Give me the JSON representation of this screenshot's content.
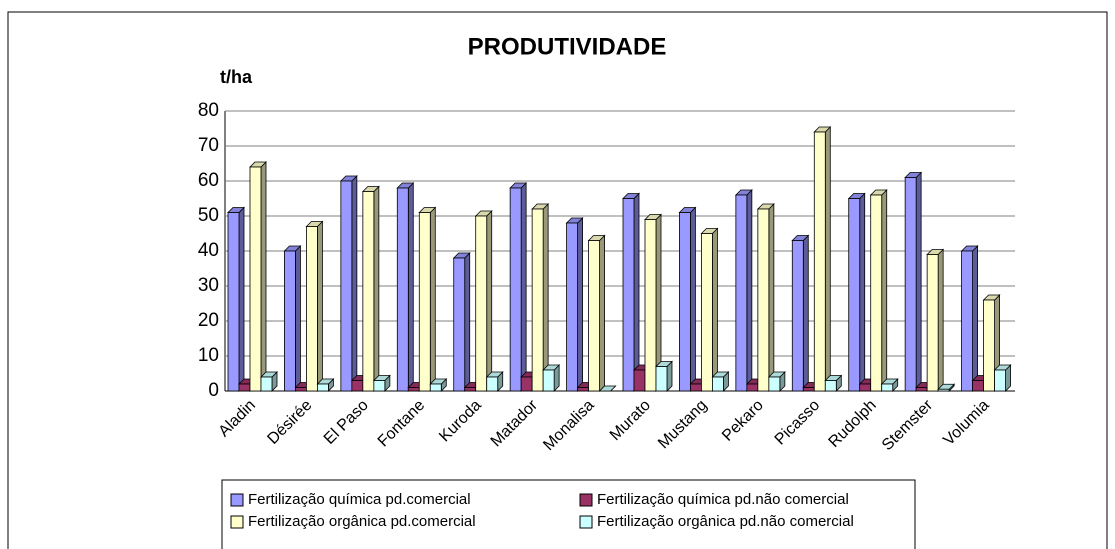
{
  "chart_data": {
    "type": "bar3d",
    "title": "PRODUTIVIDADE",
    "y_label": "t/ha",
    "categories": [
      "Aladin",
      "Désirée",
      "El Paso",
      "Fontane",
      "Kuroda",
      "Matador",
      "Monalisa",
      "Murato",
      "Mustang",
      "Pekaro",
      "Picasso",
      "Rudolph",
      "Stemster",
      "Volumia"
    ],
    "series": [
      {
        "name": "Fertilização química pd.comercial",
        "color": "#9999ff",
        "values": [
          51,
          40,
          60,
          58,
          38,
          58,
          48,
          55,
          51,
          56,
          43,
          55,
          61,
          40
        ]
      },
      {
        "name": "Fertilização química pd.não comercial",
        "color": "#993366",
        "values": [
          2,
          1,
          3,
          1,
          1,
          4,
          1,
          6,
          2,
          2,
          1,
          2,
          1,
          3
        ]
      },
      {
        "name": "Fertilização orgânica pd.comercial",
        "color": "#ffffcc",
        "values": [
          64,
          47,
          57,
          51,
          50,
          52,
          43,
          49,
          45,
          52,
          74,
          56,
          39,
          26
        ]
      },
      {
        "name": "Fertilização orgânica pd.não comercial",
        "color": "#ccffff",
        "values": [
          4,
          2,
          3,
          2,
          4,
          6,
          0,
          7,
          4,
          4,
          3,
          2,
          0.5,
          6
        ]
      }
    ],
    "ylim": [
      0,
      80
    ],
    "yticks": [
      0,
      10,
      20,
      30,
      40,
      50,
      60,
      70,
      80
    ],
    "grid": true,
    "legend": "bottom"
  }
}
